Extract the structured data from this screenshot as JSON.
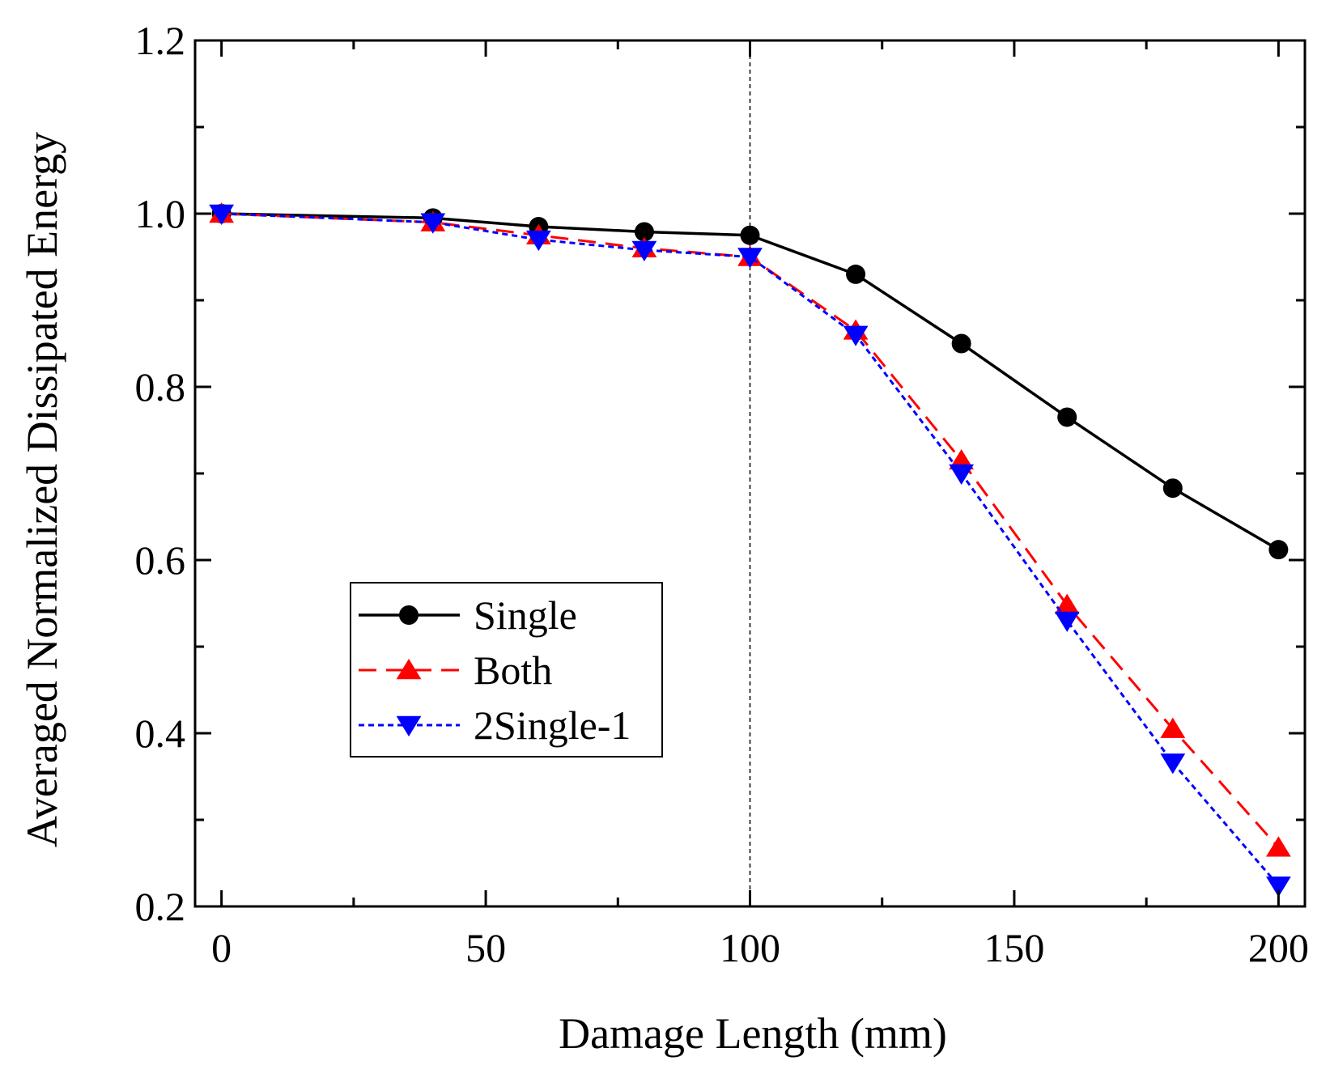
{
  "chart_data": {
    "type": "line",
    "title": "",
    "xlabel": "Damage Length (mm)",
    "ylabel": "Averaged Normalized Dissipated Energy",
    "xlim": [
      -5,
      205
    ],
    "ylim": [
      0.2,
      1.2
    ],
    "xticks": [
      0,
      50,
      100,
      150,
      200
    ],
    "xtick_labels": [
      "0",
      "50",
      "100",
      "150",
      "200"
    ],
    "yticks": [
      0.2,
      0.4,
      0.6,
      0.8,
      1.0,
      1.2
    ],
    "ytick_labels": [
      "0.2",
      "0.4",
      "0.6",
      "0.8",
      "1.0",
      "1.2"
    ],
    "grid": false,
    "vline": {
      "x": 100,
      "style": "dotted"
    },
    "legend": {
      "position": "center-left"
    },
    "series": [
      {
        "name": "Single",
        "color": "#000000",
        "line": "solid",
        "marker": "circle",
        "x": [
          0,
          40,
          60,
          80,
          100,
          120,
          140,
          160,
          180,
          200
        ],
        "y": [
          1.0,
          0.995,
          0.985,
          0.979,
          0.975,
          0.93,
          0.85,
          0.765,
          0.683,
          0.612
        ]
      },
      {
        "name": "Both",
        "color": "#ff0000",
        "line": "dashed",
        "marker": "triangle-up",
        "x": [
          0,
          40,
          60,
          80,
          100,
          120,
          140,
          160,
          180,
          200
        ],
        "y": [
          1.0,
          0.99,
          0.975,
          0.96,
          0.95,
          0.865,
          0.715,
          0.548,
          0.405,
          0.268
        ]
      },
      {
        "name": "2Single-1",
        "color": "#0000ff",
        "line": "dotted",
        "marker": "triangle-down",
        "x": [
          0,
          40,
          60,
          80,
          100,
          120,
          140,
          160,
          180,
          200
        ],
        "y": [
          1.0,
          0.99,
          0.97,
          0.958,
          0.95,
          0.86,
          0.7,
          0.53,
          0.366,
          0.224
        ]
      }
    ]
  }
}
